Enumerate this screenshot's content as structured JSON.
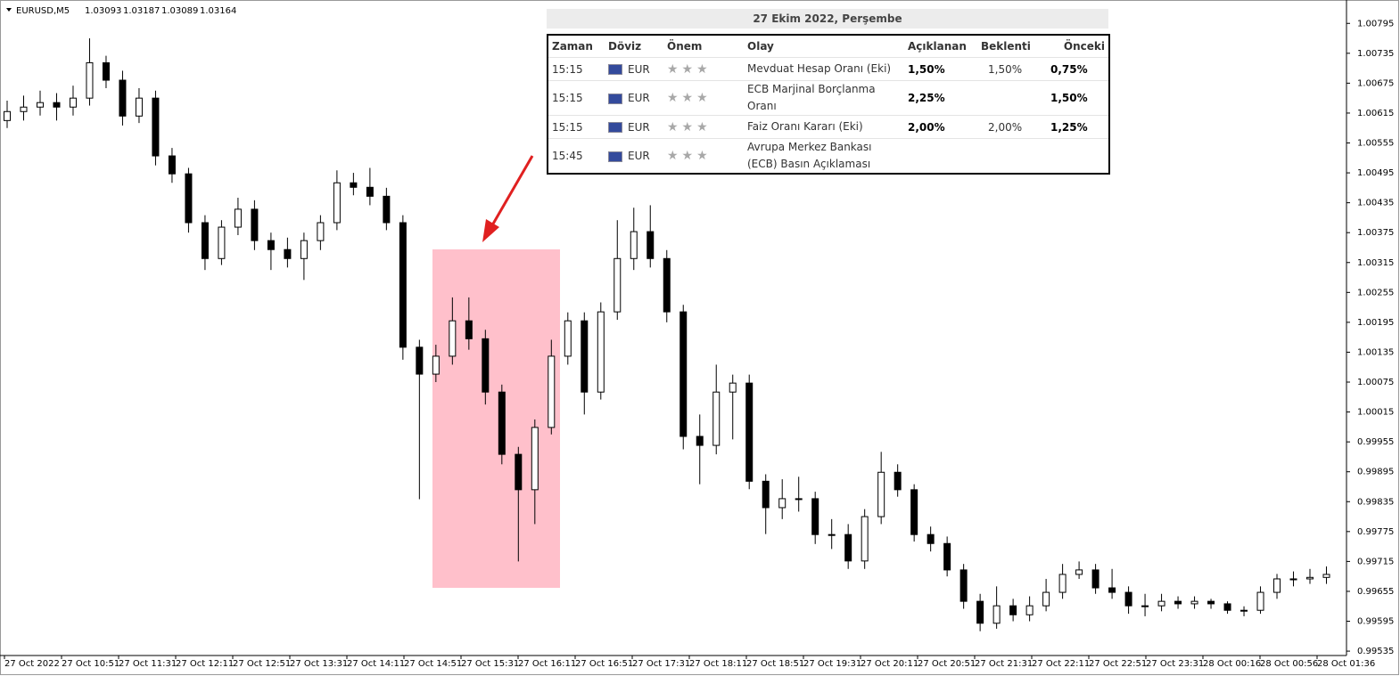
{
  "chart_data": {
    "type": "candlestick",
    "symbol": "EURUSD,M5",
    "header_values": [
      1.03093,
      1.03187,
      1.03089,
      1.03164
    ],
    "open": [
      1.006,
      1.00618,
      1.00627,
      1.00636,
      1.00627,
      1.00645,
      1.00716,
      1.00681,
      1.00609,
      1.00645,
      1.00529,
      1.00493,
      1.00395,
      1.00323,
      1.00386,
      1.00422,
      1.00359,
      1.00341,
      1.00323,
      1.00359,
      1.00395,
      1.00475,
      1.00466,
      1.00448,
      1.00395,
      1.00145,
      1.00091,
      1.00127,
      1.00198,
      1.00162,
      1.00055,
      0.9993,
      0.99859,
      0.99984,
      1.00127,
      1.00198,
      1.00055,
      1.00216,
      1.00323,
      1.00377,
      1.00323,
      1.00216,
      0.99966,
      0.99948,
      1.00055,
      1.00073,
      0.99876,
      0.99823,
      0.99841,
      0.99841,
      0.99769,
      0.99769,
      0.99716,
      0.99805,
      0.99894,
      0.99859,
      0.99769,
      0.99751,
      0.99698,
      0.99635,
      0.99591,
      0.99626,
      0.99608,
      0.99626,
      0.99653,
      0.99689,
      0.99698,
      0.99662,
      0.99653,
      0.99626,
      0.99626,
      0.99635,
      0.9963,
      0.99635,
      0.9963,
      0.99617,
      0.99617,
      0.99653,
      0.9968,
      0.9968,
      0.99683
    ],
    "high": [
      1.0064,
      1.0065,
      1.0066,
      1.00655,
      1.0067,
      1.00765,
      1.0073,
      1.007,
      1.00665,
      1.0066,
      1.00545,
      1.00505,
      1.0041,
      1.004,
      1.00445,
      1.0044,
      1.00375,
      1.00365,
      1.00375,
      1.0041,
      1.005,
      1.00495,
      1.00505,
      1.00465,
      1.0041,
      1.0016,
      1.0015,
      1.00245,
      1.00245,
      1.0018,
      1.0007,
      0.99945,
      1.0,
      1.0016,
      1.00215,
      1.00215,
      1.00235,
      1.004,
      1.00425,
      1.0043,
      1.0034,
      1.0023,
      1.0001,
      1.0011,
      1.0009,
      1.0009,
      0.9989,
      0.9988,
      0.99885,
      0.99855,
      0.998,
      0.9979,
      0.9982,
      0.99935,
      0.9991,
      0.9987,
      0.99785,
      0.99765,
      0.9971,
      0.9965,
      0.99665,
      0.9964,
      0.99645,
      0.9968,
      0.9971,
      0.99715,
      0.9971,
      0.997,
      0.99665,
      0.9965,
      0.9965,
      0.99645,
      0.99645,
      0.9964,
      0.99635,
      0.99625,
      0.99665,
      0.9969,
      0.99695,
      0.997,
      0.99705
    ],
    "low": [
      1.00585,
      1.006,
      1.0061,
      1.006,
      1.0061,
      1.0063,
      1.00665,
      1.0059,
      1.00595,
      1.0051,
      1.00475,
      1.00375,
      1.003,
      1.0031,
      1.0037,
      1.0034,
      1.003,
      1.00305,
      1.0028,
      1.0034,
      1.0038,
      1.0045,
      1.0043,
      1.0038,
      1.0012,
      0.9984,
      1.00075,
      1.0011,
      1.0014,
      1.0003,
      0.9991,
      0.99715,
      0.9979,
      0.9997,
      1.0011,
      1.0001,
      1.0004,
      1.002,
      1.003,
      1.00305,
      1.00195,
      0.9994,
      0.9987,
      0.9993,
      0.9996,
      0.9986,
      0.9977,
      0.998,
      0.99815,
      0.9975,
      0.9974,
      0.997,
      0.997,
      0.9979,
      0.99845,
      0.99755,
      0.99735,
      0.99685,
      0.9962,
      0.99575,
      0.9958,
      0.99595,
      0.99595,
      0.99615,
      0.9964,
      0.9968,
      0.9965,
      0.9964,
      0.9961,
      0.99605,
      0.99615,
      0.9962,
      0.9962,
      0.9962,
      0.9961,
      0.99605,
      0.9961,
      0.9964,
      0.99665,
      0.9967,
      0.9967
    ],
    "close": [
      1.00618,
      1.00627,
      1.00636,
      1.00627,
      1.00645,
      1.00716,
      1.00681,
      1.00609,
      1.00645,
      1.00529,
      1.00493,
      1.00395,
      1.00323,
      1.00386,
      1.00422,
      1.00359,
      1.00341,
      1.00323,
      1.00359,
      1.00395,
      1.00475,
      1.00466,
      1.00448,
      1.00395,
      1.00145,
      1.00091,
      1.00127,
      1.00198,
      1.00162,
      1.00055,
      0.9993,
      0.99859,
      0.99984,
      1.00127,
      1.00198,
      1.00055,
      1.00216,
      1.00323,
      1.00377,
      1.00323,
      1.00216,
      0.99966,
      0.99948,
      1.00055,
      1.00073,
      0.99876,
      0.99823,
      0.99841,
      0.99841,
      0.99769,
      0.99769,
      0.99716,
      0.99805,
      0.99894,
      0.99859,
      0.99769,
      0.99751,
      0.99698,
      0.99635,
      0.99591,
      0.99626,
      0.99608,
      0.99626,
      0.99653,
      0.99689,
      0.99698,
      0.99662,
      0.99653,
      0.99626,
      0.99626,
      0.99635,
      0.9963,
      0.99635,
      0.9963,
      0.99617,
      0.99617,
      0.99653,
      0.9968,
      0.9968,
      0.99683,
      0.99689
    ],
    "ylim": [
      0.99528,
      1.00833
    ],
    "yticks": [
      1.00795,
      1.00735,
      1.00675,
      1.00615,
      1.00555,
      1.00495,
      1.00435,
      1.00375,
      1.00315,
      1.00255,
      1.00195,
      1.00135,
      1.00075,
      1.00015,
      0.99955,
      0.99895,
      0.99835,
      0.99775,
      0.99715,
      0.99655,
      0.99595,
      0.99535
    ],
    "xlabels": [
      "27 Oct 2022",
      "27 Oct 10:51",
      "27 Oct 11:31",
      "27 Oct 12:11",
      "27 Oct 12:51",
      "27 Oct 13:31",
      "27 Oct 14:11",
      "27 Oct 14:51",
      "27 Oct 15:31",
      "27 Oct 16:11",
      "27 Oct 16:51",
      "27 Oct 17:31",
      "27 Oct 18:11",
      "27 Oct 18:51",
      "27 Oct 19:31",
      "27 Oct 20:11",
      "27 Oct 20:51",
      "27 Oct 21:31",
      "27 Oct 22:11",
      "27 Oct 22:51",
      "27 Oct 23:31",
      "28 Oct 00:16",
      "28 Oct 00:56",
      "28 Oct 01:36"
    ]
  },
  "calendar": {
    "title": "27 Ekim 2022, Perşembe",
    "headers": [
      "Zaman",
      "Döviz",
      "Önem",
      "Olay",
      "Açıklanan",
      "Beklenti",
      "Önceki"
    ],
    "rows": [
      {
        "time": "15:15",
        "currency": "EUR",
        "event": "Mevduat Hesap Oranı (Eki)",
        "actual": "1,50%",
        "forecast": "1,50%",
        "previous": "0,75%"
      },
      {
        "time": "15:15",
        "currency": "EUR",
        "event": "ECB Marjinal Borçlanma Oranı",
        "actual": "2,25%",
        "previous": "1,50%"
      },
      {
        "time": "15:15",
        "currency": "EUR",
        "event": "Faiz Oranı Kararı (Eki)",
        "actual": "2,00%",
        "forecast": "2,00%",
        "previous": "1,25%"
      },
      {
        "time": "15:45",
        "currency": "EUR",
        "event": "Avrupa Merkez Bankası (ECB) Basın Açıklaması"
      }
    ]
  }
}
